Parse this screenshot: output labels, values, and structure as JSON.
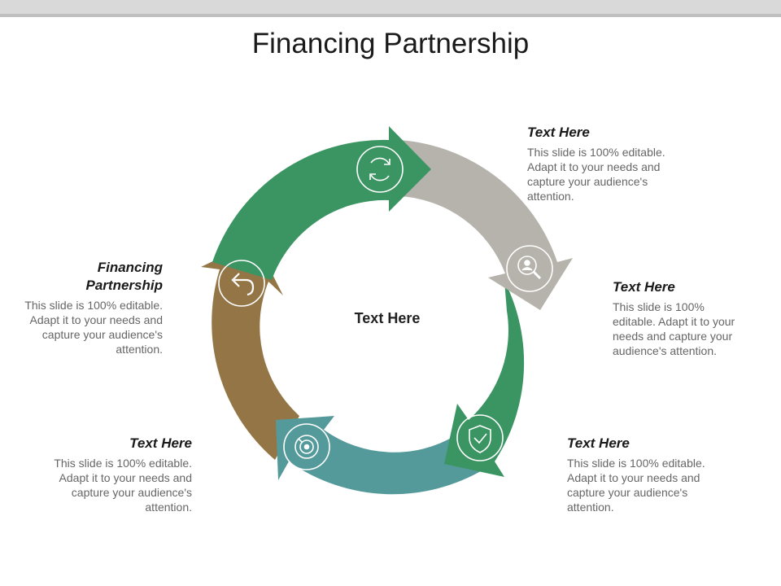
{
  "title": "Financing Partnership",
  "center_label": "Text Here",
  "colors": {
    "segment_top_green": "#3a9563",
    "segment_gray": "#b5b3ab",
    "segment_right_green": "#3a9563",
    "segment_teal": "#559a9a",
    "segment_brown": "#947646"
  },
  "icons": [
    "refresh-icon",
    "user-search-icon",
    "shield-check-icon",
    "search-target-icon",
    "undo-arrow-icon"
  ],
  "callouts": {
    "top_right": {
      "heading": "Text Here",
      "body": "This slide is 100% editable. Adapt it to your needs and capture your audience's attention."
    },
    "right": {
      "heading": "Text Here",
      "body": "This slide is 100% editable. Adapt it to your needs and capture your audience's attention."
    },
    "bottom_right": {
      "heading": "Text Here",
      "body": "This slide is 100% editable. Adapt it to your needs and capture your audience's attention."
    },
    "bottom_left": {
      "heading": "Text Here",
      "body": "This slide is 100% editable. Adapt it to your needs and capture your audience's attention."
    },
    "left": {
      "heading": "Financing Partnership",
      "body": "This slide is 100% editable. Adapt it to your needs and capture your audience's attention."
    }
  }
}
